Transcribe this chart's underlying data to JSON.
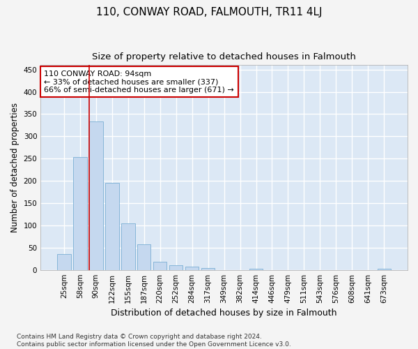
{
  "title": "110, CONWAY ROAD, FALMOUTH, TR11 4LJ",
  "subtitle": "Size of property relative to detached houses in Falmouth",
  "xlabel": "Distribution of detached houses by size in Falmouth",
  "ylabel": "Number of detached properties",
  "categories": [
    "25sqm",
    "58sqm",
    "90sqm",
    "122sqm",
    "155sqm",
    "187sqm",
    "220sqm",
    "252sqm",
    "284sqm",
    "317sqm",
    "349sqm",
    "382sqm",
    "414sqm",
    "446sqm",
    "479sqm",
    "511sqm",
    "543sqm",
    "576sqm",
    "608sqm",
    "641sqm",
    "673sqm"
  ],
  "values": [
    35,
    253,
    333,
    195,
    104,
    57,
    18,
    10,
    7,
    4,
    0,
    0,
    3,
    0,
    0,
    0,
    0,
    0,
    0,
    0,
    3
  ],
  "bar_color": "#c5d8ef",
  "bar_edge_color": "#7aafd4",
  "vline_x_index": 2,
  "vline_color": "#cc0000",
  "annotation_line1": "110 CONWAY ROAD: 94sqm",
  "annotation_line2": "← 33% of detached houses are smaller (337)",
  "annotation_line3": "66% of semi-detached houses are larger (671) →",
  "annotation_box_color": "#ffffff",
  "annotation_box_edge": "#cc0000",
  "ylim": [
    0,
    460
  ],
  "yticks": [
    0,
    50,
    100,
    150,
    200,
    250,
    300,
    350,
    400,
    450
  ],
  "bg_color": "#dce8f5",
  "grid_color": "#ffffff",
  "fig_bg_color": "#f4f4f4",
  "footer": "Contains HM Land Registry data © Crown copyright and database right 2024.\nContains public sector information licensed under the Open Government Licence v3.0.",
  "title_fontsize": 11,
  "subtitle_fontsize": 9.5,
  "xlabel_fontsize": 9,
  "ylabel_fontsize": 8.5,
  "tick_fontsize": 7.5,
  "annotation_fontsize": 8,
  "footer_fontsize": 6.5
}
